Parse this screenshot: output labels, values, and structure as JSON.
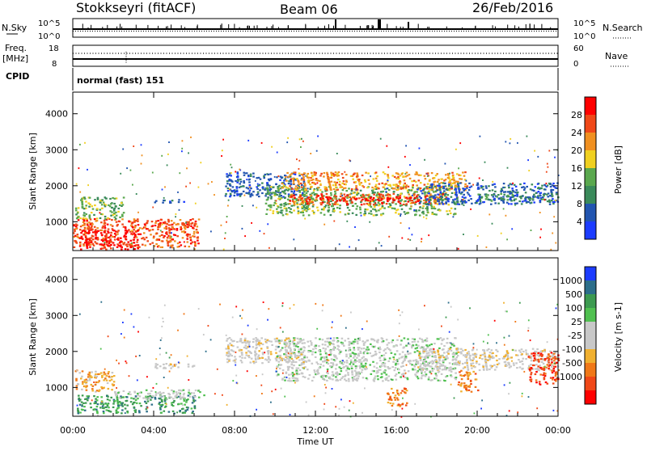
{
  "header": {
    "title": "Stokkseyri (fitACF)",
    "beam": "Beam 06",
    "date": "26/Feb/2016"
  },
  "noise_panel": {
    "left_label": "N.Sky",
    "right_label": "N.Search",
    "left_ticks": [
      "10^5",
      "10^0"
    ],
    "right_ticks": [
      "10^5",
      "10^0"
    ]
  },
  "freq_panel": {
    "left_label_1": "Freq.",
    "left_label_2": "[MHz]",
    "right_label": "Nave",
    "left_ticks": [
      "18",
      "8"
    ],
    "right_ticks": [
      "60",
      "0"
    ]
  },
  "cpid": {
    "label": "CPID",
    "mode": "normal (fast) 151"
  },
  "colors": {
    "power_scale": [
      "#1c3cff",
      "#2255b0",
      "#3a8a5a",
      "#5aa84e",
      "#f0d020",
      "#f09020",
      "#f04818",
      "#ff0000"
    ],
    "velocity_scale": [
      "#ff0000",
      "#f04818",
      "#f07818",
      "#f0b030",
      "#c8c8c8",
      "#c8c8c8",
      "#50c050",
      "#3c9a50",
      "#2c6e8a",
      "#1c3cff"
    ]
  },
  "chart_data": [
    {
      "type": "heatmap",
      "name": "power",
      "ylabel": "Slant Range [km]",
      "yticks": [
        1000,
        2000,
        3000,
        4000
      ],
      "ylim": [
        200,
        4600
      ],
      "xlim_hours": [
        0,
        24
      ],
      "colorbar": {
        "label": "Power [dB]",
        "ticks": [
          "4",
          "8",
          "12",
          "16",
          "20",
          "24",
          "28"
        ]
      },
      "regions": [
        {
          "t0": 0.0,
          "t1": 6.2,
          "r0": 300,
          "r1": 1100,
          "level": 6
        },
        {
          "t0": 0.3,
          "t1": 3.2,
          "r0": 250,
          "r1": 800,
          "level": 7
        },
        {
          "t0": 4.2,
          "t1": 6.0,
          "r0": 800,
          "r1": 1000,
          "level": 6
        },
        {
          "t0": 0.1,
          "t1": 2.5,
          "r0": 1100,
          "r1": 1700,
          "level": 3
        },
        {
          "t0": 4.0,
          "t1": 5.5,
          "r0": 1550,
          "r1": 1650,
          "level": 1
        },
        {
          "t0": 7.5,
          "t1": 11.5,
          "r0": 1700,
          "r1": 2400,
          "level": 1
        },
        {
          "t0": 9.5,
          "t1": 19.0,
          "r0": 1200,
          "r1": 2000,
          "level": 3
        },
        {
          "t0": 10.5,
          "t1": 18.5,
          "r0": 1500,
          "r1": 1800,
          "level": 6
        },
        {
          "t0": 12.0,
          "t1": 17.0,
          "r0": 1580,
          "r1": 1700,
          "level": 7
        },
        {
          "t0": 10.3,
          "t1": 19.5,
          "r0": 1900,
          "r1": 2400,
          "level": 5
        },
        {
          "t0": 17.0,
          "t1": 24.0,
          "r0": 1500,
          "r1": 2100,
          "level": 1
        },
        {
          "t0": 20.0,
          "t1": 23.8,
          "r0": 1600,
          "r1": 1800,
          "level": 2
        }
      ]
    },
    {
      "type": "heatmap",
      "name": "velocity",
      "ylabel": "Slant Range [km]",
      "xlabel": "Time UT",
      "yticks": [
        1000,
        2000,
        3000,
        4000
      ],
      "ylim": [
        200,
        4600
      ],
      "xlim_hours": [
        0,
        24
      ],
      "xticks": [
        "00:00",
        "04:00",
        "08:00",
        "12:00",
        "16:00",
        "20:00",
        "00:00"
      ],
      "colorbar": {
        "label": "Velocity [m s-1]",
        "ticks": [
          "1000",
          "500",
          "100",
          "25",
          "-25",
          "-100",
          "-500",
          "-1000"
        ]
      },
      "regions": [
        {
          "t0": 0.2,
          "t1": 6.0,
          "r0": 300,
          "r1": 800,
          "level": 7
        },
        {
          "t0": 2.0,
          "t1": 6.5,
          "r0": 700,
          "r1": 950,
          "level": 5
        },
        {
          "t0": 0.1,
          "t1": 2.0,
          "r0": 900,
          "r1": 1500,
          "level": 3
        },
        {
          "t0": 4.0,
          "t1": 6.0,
          "r0": 1550,
          "r1": 1700,
          "level": 4
        },
        {
          "t0": 7.5,
          "t1": 11.5,
          "r0": 1700,
          "r1": 2400,
          "level": 4
        },
        {
          "t0": 10.0,
          "t1": 19.0,
          "r0": 1200,
          "r1": 2400,
          "level": 5
        },
        {
          "t0": 17.0,
          "t1": 24.0,
          "r0": 1500,
          "r1": 2100,
          "level": 4
        },
        {
          "t0": 15.5,
          "t1": 16.5,
          "r0": 500,
          "r1": 1000,
          "level": 2
        },
        {
          "t0": 19.0,
          "t1": 20.0,
          "r0": 900,
          "r1": 1500,
          "level": 2
        },
        {
          "t0": 22.5,
          "t1": 24.0,
          "r0": 1100,
          "r1": 2000,
          "level": 1
        }
      ]
    }
  ]
}
